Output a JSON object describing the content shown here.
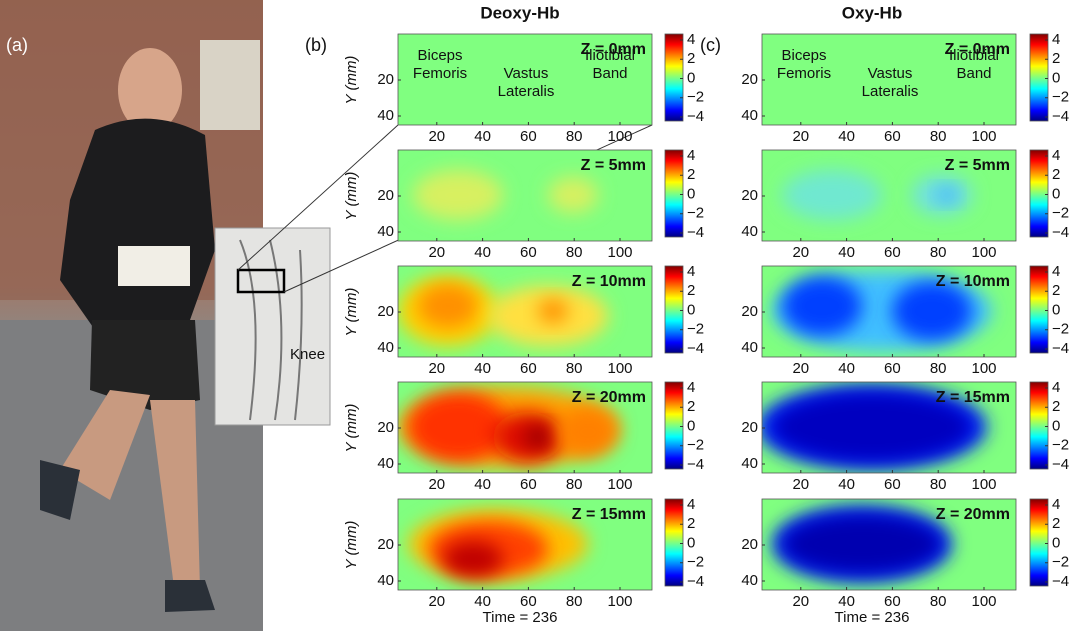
{
  "panel_labels": [
    "(a)",
    "(b)",
    "(c)"
  ],
  "photo": {
    "inset_label": "Knee"
  },
  "axes": {
    "y_label": "Y (mm)",
    "xticks": [
      20,
      40,
      60,
      80,
      100
    ],
    "yticks": [
      20,
      40
    ]
  },
  "colorbar": {
    "ticks": [
      4,
      2,
      0,
      {
        "value": -2,
        "label": "−2"
      },
      {
        "value": -4,
        "label": "−4"
      }
    ]
  },
  "columns": [
    {
      "title": "Deoxy-Hb",
      "footer": "Time = 236",
      "maps": [
        {
          "depth_label": "Z = 0mm",
          "regions": [
            [
              "Biceps",
              "Femoris"
            ],
            [
              "Vastus",
              "Lateralis"
            ],
            [
              "Iliotibial",
              "Band"
            ]
          ]
        },
        {
          "depth_label": "Z = 5mm"
        },
        {
          "depth_label": "Z = 10mm"
        },
        {
          "depth_label": "Z = 20mm"
        },
        {
          "depth_label": "Z = 15mm"
        }
      ]
    },
    {
      "title": "Oxy-Hb",
      "footer": "Time = 236",
      "maps": [
        {
          "depth_label": "Z = 0mm",
          "regions": [
            [
              "Biceps",
              "Femoris"
            ],
            [
              "Vastus",
              "Lateralis"
            ],
            [
              "Iliotibial",
              "Band"
            ]
          ]
        },
        {
          "depth_label": "Z = 5mm"
        },
        {
          "depth_label": "Z = 10mm"
        },
        {
          "depth_label": "Z = 15mm"
        },
        {
          "depth_label": "Z = 20mm"
        }
      ]
    }
  ]
}
